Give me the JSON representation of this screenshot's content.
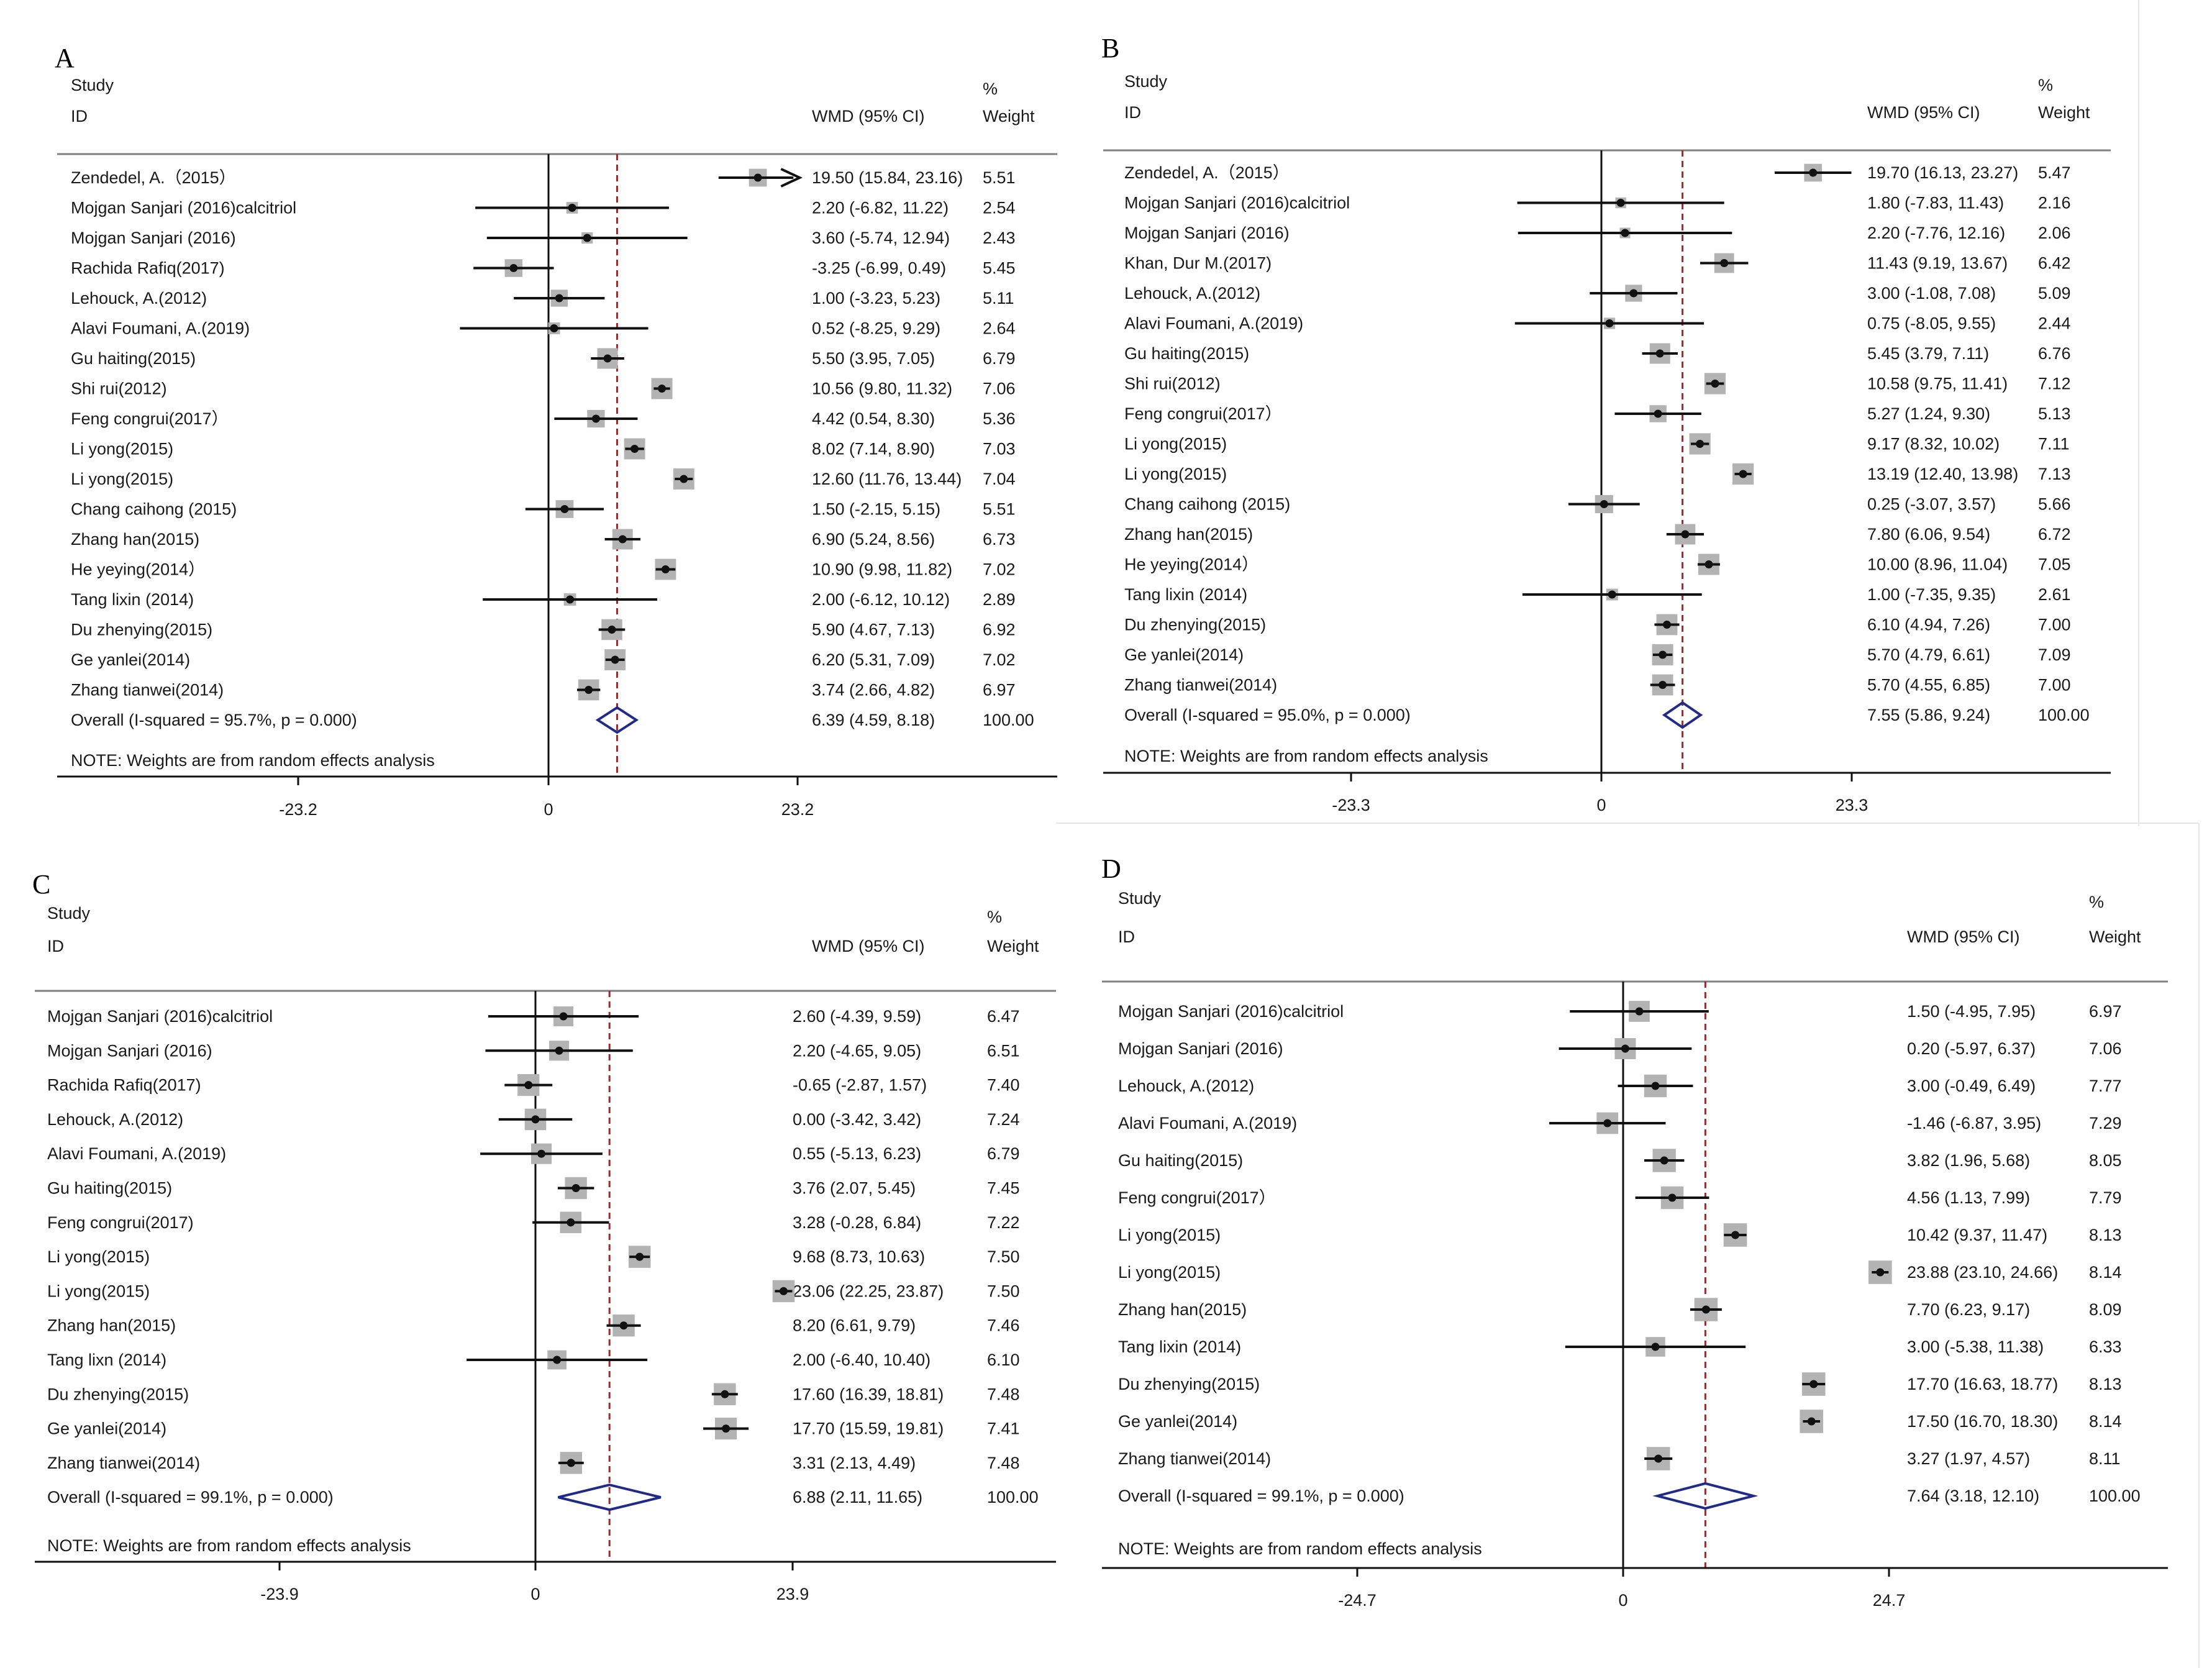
{
  "chart_data": [
    {
      "type": "forest",
      "panel": "A",
      "header": {
        "study": "Study",
        "id": "ID",
        "wmd": "WMD (95% CI)",
        "pct": "%",
        "weight": "Weight"
      },
      "axis": {
        "ticks": [
          -23.2,
          0,
          23.2
        ],
        "tick_labels": [
          "-23.2",
          "0",
          "23.2"
        ],
        "range": [
          -23.2,
          23.2
        ]
      },
      "studies": [
        {
          "name": "Zendedel, A.（2015）",
          "est": 19.5,
          "lo": 15.84,
          "hi": 23.16,
          "ci": "19.50 (15.84, 23.16)",
          "weight": "5.51",
          "w": 5.51,
          "arrow_right": true
        },
        {
          "name": "Mojgan Sanjari (2016)calcitriol",
          "est": 2.2,
          "lo": -6.82,
          "hi": 11.22,
          "ci": "2.20 (-6.82, 11.22)",
          "weight": "2.54",
          "w": 2.54
        },
        {
          "name": "Mojgan Sanjari (2016)",
          "est": 3.6,
          "lo": -5.74,
          "hi": 12.94,
          "ci": "3.60 (-5.74, 12.94)",
          "weight": "2.43",
          "w": 2.43
        },
        {
          "name": "Rachida Rafiq(2017)",
          "est": -3.25,
          "lo": -6.99,
          "hi": 0.49,
          "ci": "-3.25 (-6.99, 0.49)",
          "weight": "5.45",
          "w": 5.45
        },
        {
          "name": "Lehouck, A.(2012)",
          "est": 1.0,
          "lo": -3.23,
          "hi": 5.23,
          "ci": "1.00 (-3.23, 5.23)",
          "weight": "5.11",
          "w": 5.11
        },
        {
          "name": "Alavi Foumani, A.(2019)",
          "est": 0.52,
          "lo": -8.25,
          "hi": 9.29,
          "ci": "0.52 (-8.25, 9.29)",
          "weight": "2.64",
          "w": 2.64
        },
        {
          "name": "Gu haiting(2015)",
          "est": 5.5,
          "lo": 3.95,
          "hi": 7.05,
          "ci": "5.50 (3.95, 7.05)",
          "weight": "6.79",
          "w": 6.79
        },
        {
          "name": "Shi rui(2012)",
          "est": 10.56,
          "lo": 9.8,
          "hi": 11.32,
          "ci": "10.56 (9.80, 11.32)",
          "weight": "7.06",
          "w": 7.06
        },
        {
          "name": "Feng congrui(2017）",
          "est": 4.42,
          "lo": 0.54,
          "hi": 8.3,
          "ci": "4.42 (0.54, 8.30)",
          "weight": "5.36",
          "w": 5.36
        },
        {
          "name": "Li yong(2015)",
          "est": 8.02,
          "lo": 7.14,
          "hi": 8.9,
          "ci": "8.02 (7.14, 8.90)",
          "weight": "7.03",
          "w": 7.03
        },
        {
          "name": "Li yong(2015)",
          "est": 12.6,
          "lo": 11.76,
          "hi": 13.44,
          "ci": "12.60 (11.76, 13.44)",
          "weight": "7.04",
          "w": 7.04
        },
        {
          "name": "Chang caihong (2015)",
          "est": 1.5,
          "lo": -2.15,
          "hi": 5.15,
          "ci": "1.50 (-2.15, 5.15)",
          "weight": "5.51",
          "w": 5.51
        },
        {
          "name": "Zhang han(2015)",
          "est": 6.9,
          "lo": 5.24,
          "hi": 8.56,
          "ci": "6.90 (5.24, 8.56)",
          "weight": "6.73",
          "w": 6.73
        },
        {
          "name": "He yeying(2014）",
          "est": 10.9,
          "lo": 9.98,
          "hi": 11.82,
          "ci": "10.90 (9.98, 11.82)",
          "weight": "7.02",
          "w": 7.02
        },
        {
          "name": "Tang lixin (2014)",
          "est": 2.0,
          "lo": -6.12,
          "hi": 10.12,
          "ci": "2.00 (-6.12, 10.12)",
          "weight": "2.89",
          "w": 2.89
        },
        {
          "name": "Du zhenying(2015)",
          "est": 5.9,
          "lo": 4.67,
          "hi": 7.13,
          "ci": "5.90 (4.67, 7.13)",
          "weight": "6.92",
          "w": 6.92
        },
        {
          "name": "Ge yanlei(2014)",
          "est": 6.2,
          "lo": 5.31,
          "hi": 7.09,
          "ci": "6.20 (5.31, 7.09)",
          "weight": "7.02",
          "w": 7.02
        },
        {
          "name": "Zhang tianwei(2014)",
          "est": 3.74,
          "lo": 2.66,
          "hi": 4.82,
          "ci": "3.74 (2.66, 4.82)",
          "weight": "6.97",
          "w": 6.97
        }
      ],
      "overall": {
        "label": "Overall  (I-squared = 95.7%, p = 0.000)",
        "est": 6.39,
        "lo": 4.59,
        "hi": 8.18,
        "ci": "6.39 (4.59, 8.18)",
        "weight": "100.00"
      },
      "note": "NOTE: Weights are from random effects analysis"
    },
    {
      "type": "forest",
      "panel": "B",
      "header": {
        "study": "Study",
        "id": "ID",
        "wmd": "WMD (95% CI)",
        "pct": "%",
        "weight": "Weight"
      },
      "axis": {
        "ticks": [
          -23.3,
          0,
          23.3
        ],
        "tick_labels": [
          "-23.3",
          "0",
          "23.3"
        ],
        "range": [
          -23.3,
          23.3
        ]
      },
      "studies": [
        {
          "name": "Zendedel, A.（2015）",
          "est": 19.7,
          "lo": 16.13,
          "hi": 23.27,
          "ci": "19.70 (16.13, 23.27)",
          "weight": "5.47",
          "w": 5.47
        },
        {
          "name": "Mojgan Sanjari (2016)calcitriol",
          "est": 1.8,
          "lo": -7.83,
          "hi": 11.43,
          "ci": "1.80 (-7.83, 11.43)",
          "weight": "2.16",
          "w": 2.16
        },
        {
          "name": "Mojgan Sanjari (2016)",
          "est": 2.2,
          "lo": -7.76,
          "hi": 12.16,
          "ci": "2.20 (-7.76, 12.16)",
          "weight": "2.06",
          "w": 2.06
        },
        {
          "name": "Khan, Dur M.(2017)",
          "est": 11.43,
          "lo": 9.19,
          "hi": 13.67,
          "ci": "11.43 (9.19, 13.67)",
          "weight": "6.42",
          "w": 6.42
        },
        {
          "name": "Lehouck, A.(2012)",
          "est": 3.0,
          "lo": -1.08,
          "hi": 7.08,
          "ci": "3.00 (-1.08, 7.08)",
          "weight": "5.09",
          "w": 5.09
        },
        {
          "name": "Alavi Foumani, A.(2019)",
          "est": 0.75,
          "lo": -8.05,
          "hi": 9.55,
          "ci": "0.75 (-8.05, 9.55)",
          "weight": "2.44",
          "w": 2.44
        },
        {
          "name": "Gu haiting(2015)",
          "est": 5.45,
          "lo": 3.79,
          "hi": 7.11,
          "ci": "5.45 (3.79, 7.11)",
          "weight": "6.76",
          "w": 6.76
        },
        {
          "name": "Shi rui(2012)",
          "est": 10.58,
          "lo": 9.75,
          "hi": 11.41,
          "ci": "10.58 (9.75, 11.41)",
          "weight": "7.12",
          "w": 7.12
        },
        {
          "name": "Feng congrui(2017）",
          "est": 5.27,
          "lo": 1.24,
          "hi": 9.3,
          "ci": "5.27 (1.24, 9.30)",
          "weight": "5.13",
          "w": 5.13
        },
        {
          "name": "Li yong(2015)",
          "est": 9.17,
          "lo": 8.32,
          "hi": 10.02,
          "ci": "9.17 (8.32, 10.02)",
          "weight": "7.11",
          "w": 7.11
        },
        {
          "name": "Li yong(2015)",
          "est": 13.19,
          "lo": 12.4,
          "hi": 13.98,
          "ci": "13.19 (12.40, 13.98)",
          "weight": "7.13",
          "w": 7.13
        },
        {
          "name": "Chang caihong (2015)",
          "est": 0.25,
          "lo": -3.07,
          "hi": 3.57,
          "ci": "0.25 (-3.07, 3.57)",
          "weight": "5.66",
          "w": 5.66
        },
        {
          "name": "Zhang han(2015)",
          "est": 7.8,
          "lo": 6.06,
          "hi": 9.54,
          "ci": "7.80 (6.06, 9.54)",
          "weight": "6.72",
          "w": 6.72
        },
        {
          "name": "He yeying(2014）",
          "est": 10.0,
          "lo": 8.96,
          "hi": 11.04,
          "ci": "10.00 (8.96, 11.04)",
          "weight": "7.05",
          "w": 7.05
        },
        {
          "name": "Tang lixin (2014)",
          "est": 1.0,
          "lo": -7.35,
          "hi": 9.35,
          "ci": "1.00 (-7.35, 9.35)",
          "weight": "2.61",
          "w": 2.61
        },
        {
          "name": "Du zhenying(2015)",
          "est": 6.1,
          "lo": 4.94,
          "hi": 7.26,
          "ci": "6.10 (4.94, 7.26)",
          "weight": "7.00",
          "w": 7.0
        },
        {
          "name": "Ge yanlei(2014)",
          "est": 5.7,
          "lo": 4.79,
          "hi": 6.61,
          "ci": "5.70 (4.79, 6.61)",
          "weight": "7.09",
          "w": 7.09
        },
        {
          "name": "Zhang tianwei(2014)",
          "est": 5.7,
          "lo": 4.55,
          "hi": 6.85,
          "ci": "5.70 (4.55, 6.85)",
          "weight": "7.00",
          "w": 7.0
        }
      ],
      "overall": {
        "label": "Overall  (I-squared = 95.0%, p = 0.000)",
        "est": 7.55,
        "lo": 5.86,
        "hi": 9.24,
        "ci": "7.55 (5.86, 9.24)",
        "weight": "100.00"
      },
      "note": "NOTE: Weights are from random effects analysis"
    },
    {
      "type": "forest",
      "panel": "C",
      "header": {
        "study": "Study",
        "id": "ID",
        "wmd": "WMD (95% CI)",
        "pct": "%",
        "weight": "Weight"
      },
      "axis": {
        "ticks": [
          -23.9,
          0,
          23.9
        ],
        "tick_labels": [
          "-23.9",
          "0",
          "23.9"
        ],
        "range": [
          -23.9,
          23.9
        ]
      },
      "studies": [
        {
          "name": "Mojgan Sanjari (2016)calcitriol",
          "est": 2.6,
          "lo": -4.39,
          "hi": 9.59,
          "ci": "2.60 (-4.39, 9.59)",
          "weight": "6.47",
          "w": 6.47
        },
        {
          "name": "Mojgan Sanjari (2016)",
          "est": 2.2,
          "lo": -4.65,
          "hi": 9.05,
          "ci": "2.20 (-4.65, 9.05)",
          "weight": "6.51",
          "w": 6.51
        },
        {
          "name": "Rachida Rafiq(2017)",
          "est": -0.65,
          "lo": -2.87,
          "hi": 1.57,
          "ci": "-0.65 (-2.87, 1.57)",
          "weight": "7.40",
          "w": 7.4
        },
        {
          "name": "Lehouck, A.(2012)",
          "est": 0.0,
          "lo": -3.42,
          "hi": 3.42,
          "ci": "0.00 (-3.42, 3.42)",
          "weight": "7.24",
          "w": 7.24
        },
        {
          "name": "Alavi Foumani, A.(2019)",
          "est": 0.55,
          "lo": -5.13,
          "hi": 6.23,
          "ci": "0.55 (-5.13, 6.23)",
          "weight": "6.79",
          "w": 6.79
        },
        {
          "name": "Gu haiting(2015)",
          "est": 3.76,
          "lo": 2.07,
          "hi": 5.45,
          "ci": "3.76 (2.07, 5.45)",
          "weight": "7.45",
          "w": 7.45
        },
        {
          "name": "Feng congrui(2017)",
          "est": 3.28,
          "lo": -0.28,
          "hi": 6.84,
          "ci": "3.28 (-0.28, 6.84)",
          "weight": "7.22",
          "w": 7.22
        },
        {
          "name": "Li yong(2015)",
          "est": 9.68,
          "lo": 8.73,
          "hi": 10.63,
          "ci": "9.68 (8.73, 10.63)",
          "weight": "7.50",
          "w": 7.5
        },
        {
          "name": "Li yong(2015)",
          "est": 23.06,
          "lo": 22.25,
          "hi": 23.87,
          "ci": "23.06 (22.25, 23.87)",
          "weight": "7.50",
          "w": 7.5
        },
        {
          "name": "Zhang han(2015)",
          "est": 8.2,
          "lo": 6.61,
          "hi": 9.79,
          "ci": "8.20 (6.61, 9.79)",
          "weight": "7.46",
          "w": 7.46
        },
        {
          "name": "Tang lixn (2014)",
          "est": 2.0,
          "lo": -6.4,
          "hi": 10.4,
          "ci": "2.00 (-6.40, 10.40)",
          "weight": "6.10",
          "w": 6.1
        },
        {
          "name": "Du zhenying(2015)",
          "est": 17.6,
          "lo": 16.39,
          "hi": 18.81,
          "ci": "17.60 (16.39, 18.81)",
          "weight": "7.48",
          "w": 7.48
        },
        {
          "name": "Ge yanlei(2014)",
          "est": 17.7,
          "lo": 15.59,
          "hi": 19.81,
          "ci": "17.70 (15.59, 19.81)",
          "weight": "7.41",
          "w": 7.41
        },
        {
          "name": "Zhang tianwei(2014)",
          "est": 3.31,
          "lo": 2.13,
          "hi": 4.49,
          "ci": "3.31 (2.13, 4.49)",
          "weight": "7.48",
          "w": 7.48
        }
      ],
      "overall": {
        "label": "Overall  (I-squared = 99.1%, p = 0.000)",
        "est": 6.88,
        "lo": 2.11,
        "hi": 11.65,
        "ci": "6.88 (2.11, 11.65)",
        "weight": "100.00"
      },
      "note": "NOTE: Weights are from random effects analysis"
    },
    {
      "type": "forest",
      "panel": "D",
      "header": {
        "study": "Study",
        "id": "ID",
        "wmd": "WMD (95% CI)",
        "pct": "%",
        "weight": "Weight"
      },
      "axis": {
        "ticks": [
          -24.7,
          0,
          24.7
        ],
        "tick_labels": [
          "-24.7",
          "0",
          "24.7"
        ],
        "range": [
          -24.7,
          24.7
        ]
      },
      "studies": [
        {
          "name": "Mojgan Sanjari (2016)calcitriol",
          "est": 1.5,
          "lo": -4.95,
          "hi": 7.95,
          "ci": "1.50 (-4.95, 7.95)",
          "weight": "6.97",
          "w": 6.97
        },
        {
          "name": "Mojgan Sanjari (2016)",
          "est": 0.2,
          "lo": -5.97,
          "hi": 6.37,
          "ci": "0.20 (-5.97, 6.37)",
          "weight": "7.06",
          "w": 7.06
        },
        {
          "name": "Lehouck, A.(2012)",
          "est": 3.0,
          "lo": -0.49,
          "hi": 6.49,
          "ci": "3.00 (-0.49, 6.49)",
          "weight": "7.77",
          "w": 7.77
        },
        {
          "name": "Alavi Foumani, A.(2019)",
          "est": -1.46,
          "lo": -6.87,
          "hi": 3.95,
          "ci": "-1.46 (-6.87, 3.95)",
          "weight": "7.29",
          "w": 7.29
        },
        {
          "name": "Gu haiting(2015)",
          "est": 3.82,
          "lo": 1.96,
          "hi": 5.68,
          "ci": "3.82 (1.96, 5.68)",
          "weight": "8.05",
          "w": 8.05
        },
        {
          "name": "Feng congrui(2017）",
          "est": 4.56,
          "lo": 1.13,
          "hi": 7.99,
          "ci": "4.56 (1.13, 7.99)",
          "weight": "7.79",
          "w": 7.79
        },
        {
          "name": "Li yong(2015)",
          "est": 10.42,
          "lo": 9.37,
          "hi": 11.47,
          "ci": "10.42 (9.37, 11.47)",
          "weight": "8.13",
          "w": 8.13
        },
        {
          "name": "Li yong(2015)",
          "est": 23.88,
          "lo": 23.1,
          "hi": 24.66,
          "ci": "23.88 (23.10, 24.66)",
          "weight": "8.14",
          "w": 8.14
        },
        {
          "name": "Zhang han(2015)",
          "est": 7.7,
          "lo": 6.23,
          "hi": 9.17,
          "ci": "7.70 (6.23, 9.17)",
          "weight": "8.09",
          "w": 8.09
        },
        {
          "name": "Tang lixin (2014)",
          "est": 3.0,
          "lo": -5.38,
          "hi": 11.38,
          "ci": "3.00 (-5.38, 11.38)",
          "weight": "6.33",
          "w": 6.33
        },
        {
          "name": "Du zhenying(2015)",
          "est": 17.7,
          "lo": 16.63,
          "hi": 18.77,
          "ci": "17.70 (16.63, 18.77)",
          "weight": "8.13",
          "w": 8.13
        },
        {
          "name": "Ge yanlei(2014)",
          "est": 17.5,
          "lo": 16.7,
          "hi": 18.3,
          "ci": "17.50 (16.70, 18.30)",
          "weight": "8.14",
          "w": 8.14
        },
        {
          "name": "Zhang tianwei(2014)",
          "est": 3.27,
          "lo": 1.97,
          "hi": 4.57,
          "ci": "3.27 (1.97, 4.57)",
          "weight": "8.11",
          "w": 8.11
        }
      ],
      "overall": {
        "label": "Overall  (I-squared = 99.1%, p = 0.000)",
        "est": 7.64,
        "lo": 3.18,
        "hi": 12.1,
        "ci": "7.64 (3.18, 12.10)",
        "weight": "100.00"
      },
      "note": "NOTE: Weights are from random effects analysis"
    }
  ],
  "colors": {
    "ink": "#111111",
    "box": "#b3b3b3",
    "diamond": "#1f2a8a",
    "ref_line": "#9c2a2a",
    "rule": "#808080"
  }
}
